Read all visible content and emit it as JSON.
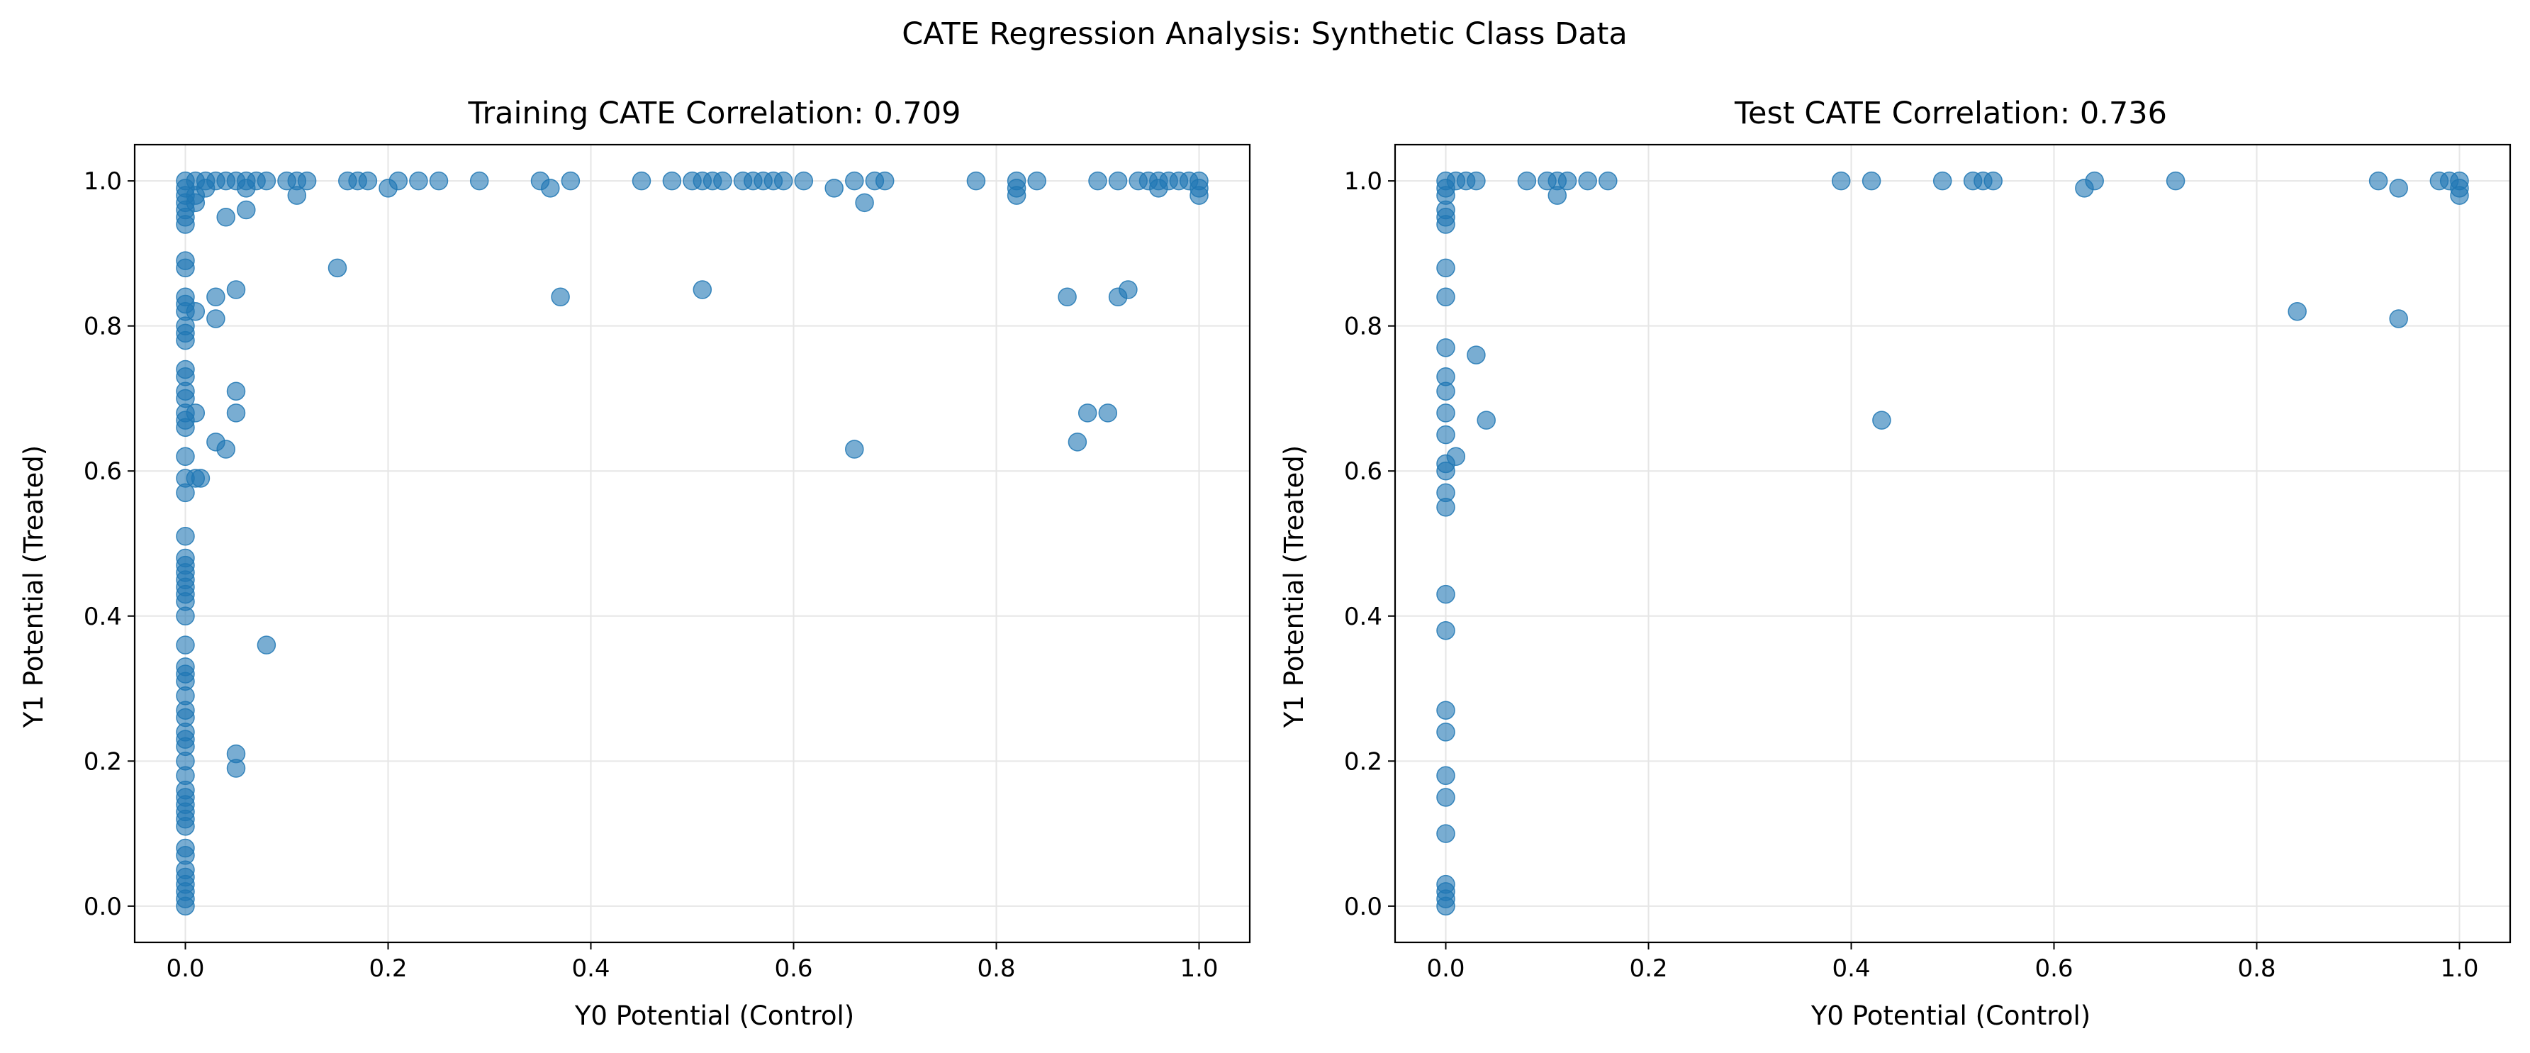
{
  "suptitle": "CATE Regression Analysis: Synthetic Class Data",
  "colors": {
    "point": "#1f77b4",
    "grid": "#e6e6e6",
    "axis": "#000000"
  },
  "chart_data": [
    {
      "type": "scatter",
      "title": "Training CATE Correlation: 0.709",
      "xlabel": "Y0 Potential (Control)",
      "ylabel": "Y1 Potential (Treated)",
      "xlim": [
        -0.05,
        1.05
      ],
      "ylim": [
        -0.05,
        1.05
      ],
      "xticks": [
        0.0,
        0.2,
        0.4,
        0.6,
        0.8,
        1.0
      ],
      "yticks": [
        0.0,
        0.2,
        0.4,
        0.6,
        0.8,
        1.0
      ],
      "xtick_labels": [
        "0.0",
        "0.2",
        "0.4",
        "0.6",
        "0.8",
        "1.0"
      ],
      "ytick_labels": [
        "0.0",
        "0.2",
        "0.4",
        "0.6",
        "0.8",
        "1.0"
      ],
      "grid": true,
      "points": [
        [
          0,
          1.0
        ],
        [
          0,
          0.99
        ],
        [
          0,
          0.98
        ],
        [
          0,
          0.97
        ],
        [
          0,
          0.96
        ],
        [
          0,
          0.95
        ],
        [
          0,
          0.94
        ],
        [
          0,
          0.89
        ],
        [
          0,
          0.88
        ],
        [
          0,
          0.84
        ],
        [
          0,
          0.83
        ],
        [
          0,
          0.82
        ],
        [
          0,
          0.8
        ],
        [
          0,
          0.79
        ],
        [
          0,
          0.78
        ],
        [
          0,
          0.74
        ],
        [
          0,
          0.73
        ],
        [
          0,
          0.71
        ],
        [
          0,
          0.7
        ],
        [
          0,
          0.68
        ],
        [
          0,
          0.67
        ],
        [
          0,
          0.66
        ],
        [
          0,
          0.62
        ],
        [
          0,
          0.59
        ],
        [
          0,
          0.57
        ],
        [
          0,
          0.51
        ],
        [
          0,
          0.48
        ],
        [
          0,
          0.47
        ],
        [
          0,
          0.46
        ],
        [
          0,
          0.45
        ],
        [
          0,
          0.44
        ],
        [
          0,
          0.43
        ],
        [
          0,
          0.42
        ],
        [
          0,
          0.4
        ],
        [
          0,
          0.36
        ],
        [
          0,
          0.33
        ],
        [
          0,
          0.32
        ],
        [
          0,
          0.31
        ],
        [
          0,
          0.29
        ],
        [
          0,
          0.27
        ],
        [
          0,
          0.26
        ],
        [
          0,
          0.24
        ],
        [
          0,
          0.23
        ],
        [
          0,
          0.22
        ],
        [
          0,
          0.2
        ],
        [
          0,
          0.18
        ],
        [
          0,
          0.16
        ],
        [
          0,
          0.15
        ],
        [
          0,
          0.14
        ],
        [
          0,
          0.13
        ],
        [
          0,
          0.12
        ],
        [
          0,
          0.11
        ],
        [
          0,
          0.08
        ],
        [
          0,
          0.07
        ],
        [
          0,
          0.05
        ],
        [
          0,
          0.04
        ],
        [
          0,
          0.03
        ],
        [
          0,
          0.02
        ],
        [
          0,
          0.01
        ],
        [
          0,
          0.0
        ],
        [
          0.01,
          1.0
        ],
        [
          0.01,
          0.98
        ],
        [
          0.01,
          0.97
        ],
        [
          0.01,
          0.82
        ],
        [
          0.01,
          0.68
        ],
        [
          0.01,
          0.59
        ],
        [
          0.015,
          0.59
        ],
        [
          0.02,
          1.0
        ],
        [
          0.02,
          0.99
        ],
        [
          0.03,
          1.0
        ],
        [
          0.03,
          0.84
        ],
        [
          0.03,
          0.81
        ],
        [
          0.03,
          0.64
        ],
        [
          0.04,
          1.0
        ],
        [
          0.04,
          0.95
        ],
        [
          0.04,
          0.63
        ],
        [
          0.05,
          1.0
        ],
        [
          0.05,
          0.85
        ],
        [
          0.05,
          0.71
        ],
        [
          0.05,
          0.68
        ],
        [
          0.05,
          0.21
        ],
        [
          0.05,
          0.19
        ],
        [
          0.06,
          1.0
        ],
        [
          0.06,
          0.99
        ],
        [
          0.06,
          0.96
        ],
        [
          0.07,
          1.0
        ],
        [
          0.08,
          1.0
        ],
        [
          0.08,
          0.36
        ],
        [
          0.1,
          1.0
        ],
        [
          0.11,
          1.0
        ],
        [
          0.11,
          0.98
        ],
        [
          0.12,
          1.0
        ],
        [
          0.15,
          0.88
        ],
        [
          0.16,
          1.0
        ],
        [
          0.17,
          1.0
        ],
        [
          0.18,
          1.0
        ],
        [
          0.2,
          0.99
        ],
        [
          0.21,
          1.0
        ],
        [
          0.23,
          1.0
        ],
        [
          0.25,
          1.0
        ],
        [
          0.29,
          1.0
        ],
        [
          0.35,
          1.0
        ],
        [
          0.36,
          0.99
        ],
        [
          0.37,
          0.84
        ],
        [
          0.38,
          1.0
        ],
        [
          0.45,
          1.0
        ],
        [
          0.48,
          1.0
        ],
        [
          0.5,
          1.0
        ],
        [
          0.51,
          1.0
        ],
        [
          0.51,
          0.85
        ],
        [
          0.52,
          1.0
        ],
        [
          0.53,
          1.0
        ],
        [
          0.55,
          1.0
        ],
        [
          0.56,
          1.0
        ],
        [
          0.57,
          1.0
        ],
        [
          0.58,
          1.0
        ],
        [
          0.59,
          1.0
        ],
        [
          0.61,
          1.0
        ],
        [
          0.64,
          0.99
        ],
        [
          0.66,
          1.0
        ],
        [
          0.66,
          0.63
        ],
        [
          0.67,
          0.97
        ],
        [
          0.68,
          1.0
        ],
        [
          0.69,
          1.0
        ],
        [
          0.78,
          1.0
        ],
        [
          0.82,
          1.0
        ],
        [
          0.82,
          0.99
        ],
        [
          0.82,
          0.98
        ],
        [
          0.84,
          1.0
        ],
        [
          0.87,
          0.84
        ],
        [
          0.88,
          0.64
        ],
        [
          0.89,
          0.68
        ],
        [
          0.9,
          1.0
        ],
        [
          0.91,
          0.68
        ],
        [
          0.92,
          1.0
        ],
        [
          0.92,
          0.84
        ],
        [
          0.93,
          0.85
        ],
        [
          0.94,
          1.0
        ],
        [
          0.95,
          1.0
        ],
        [
          0.96,
          1.0
        ],
        [
          0.96,
          0.99
        ],
        [
          0.97,
          1.0
        ],
        [
          0.98,
          1.0
        ],
        [
          0.99,
          1.0
        ],
        [
          1.0,
          1.0
        ],
        [
          1.0,
          0.99
        ],
        [
          1.0,
          0.98
        ]
      ]
    },
    {
      "type": "scatter",
      "title": "Test CATE Correlation: 0.736",
      "xlabel": "Y0 Potential (Control)",
      "ylabel": "Y1 Potential (Treated)",
      "xlim": [
        -0.05,
        1.05
      ],
      "ylim": [
        -0.05,
        1.05
      ],
      "xticks": [
        0.0,
        0.2,
        0.4,
        0.6,
        0.8,
        1.0
      ],
      "yticks": [
        0.0,
        0.2,
        0.4,
        0.6,
        0.8,
        1.0
      ],
      "xtick_labels": [
        "0.0",
        "0.2",
        "0.4",
        "0.6",
        "0.8",
        "1.0"
      ],
      "ytick_labels": [
        "0.0",
        "0.2",
        "0.4",
        "0.6",
        "0.8",
        "1.0"
      ],
      "grid": true,
      "points": [
        [
          0,
          1.0
        ],
        [
          0,
          0.99
        ],
        [
          0,
          0.98
        ],
        [
          0,
          0.96
        ],
        [
          0,
          0.95
        ],
        [
          0,
          0.94
        ],
        [
          0,
          0.88
        ],
        [
          0,
          0.84
        ],
        [
          0,
          0.77
        ],
        [
          0,
          0.73
        ],
        [
          0,
          0.71
        ],
        [
          0,
          0.68
        ],
        [
          0,
          0.65
        ],
        [
          0,
          0.61
        ],
        [
          0,
          0.6
        ],
        [
          0,
          0.57
        ],
        [
          0,
          0.55
        ],
        [
          0,
          0.43
        ],
        [
          0,
          0.38
        ],
        [
          0,
          0.27
        ],
        [
          0,
          0.24
        ],
        [
          0,
          0.18
        ],
        [
          0,
          0.15
        ],
        [
          0,
          0.1
        ],
        [
          0,
          0.03
        ],
        [
          0,
          0.02
        ],
        [
          0,
          0.01
        ],
        [
          0,
          0.0
        ],
        [
          0.01,
          1.0
        ],
        [
          0.01,
          0.62
        ],
        [
          0.02,
          1.0
        ],
        [
          0.03,
          1.0
        ],
        [
          0.03,
          0.76
        ],
        [
          0.04,
          0.67
        ],
        [
          0.08,
          1.0
        ],
        [
          0.1,
          1.0
        ],
        [
          0.11,
          1.0
        ],
        [
          0.11,
          0.98
        ],
        [
          0.12,
          1.0
        ],
        [
          0.14,
          1.0
        ],
        [
          0.16,
          1.0
        ],
        [
          0.39,
          1.0
        ],
        [
          0.42,
          1.0
        ],
        [
          0.43,
          0.67
        ],
        [
          0.49,
          1.0
        ],
        [
          0.52,
          1.0
        ],
        [
          0.53,
          1.0
        ],
        [
          0.54,
          1.0
        ],
        [
          0.63,
          0.99
        ],
        [
          0.64,
          1.0
        ],
        [
          0.72,
          1.0
        ],
        [
          0.84,
          0.82
        ],
        [
          0.92,
          1.0
        ],
        [
          0.94,
          0.99
        ],
        [
          0.94,
          0.81
        ],
        [
          0.98,
          1.0
        ],
        [
          0.99,
          1.0
        ],
        [
          1.0,
          1.0
        ],
        [
          1.0,
          0.99
        ],
        [
          1.0,
          0.98
        ]
      ]
    }
  ]
}
